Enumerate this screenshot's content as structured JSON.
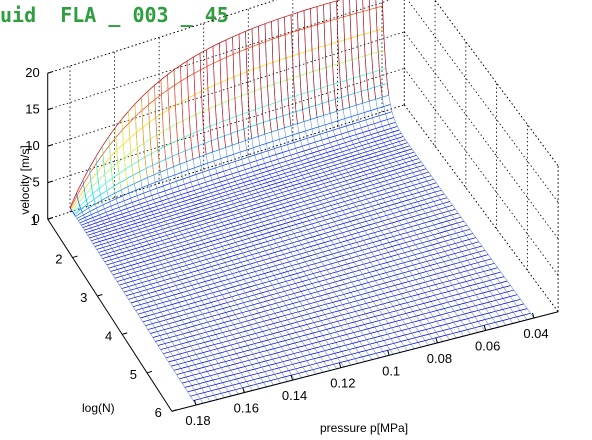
{
  "title": "uid  FLA _ 003 _ 45",
  "chart_data": {
    "type": "surface",
    "grid": true,
    "colormap": "jet",
    "xlabel": "pressure p[MPa]",
    "ylabel": "log(N)",
    "zlabel": "velocity [m/s]",
    "x_ticks": [
      "0.04",
      "0.06",
      "0.08",
      "0.1",
      "0.12",
      "0.14",
      "0.16",
      "0.18"
    ],
    "y_ticks": [
      "1",
      "2",
      "3",
      "4",
      "5",
      "6"
    ],
    "z_ticks": [
      "0",
      "5",
      "10",
      "15",
      "20"
    ],
    "xlim": [
      0.03,
      0.19
    ],
    "ylim": [
      1,
      6
    ],
    "zlim": [
      0,
      20
    ],
    "surface_samples": {
      "x": [
        0.04,
        0.06,
        0.08,
        0.1,
        0.12,
        0.14,
        0.16,
        0.18
      ],
      "y_at_logN_1": [
        15.5,
        17.0,
        18.5,
        19.8,
        20.2,
        20.0,
        18.0,
        8.0
      ],
      "y_at_logN_2": [
        0.2,
        0.3,
        0.5,
        0.6,
        0.7,
        0.8,
        0.9,
        1.0
      ],
      "y_at_logN_6": [
        0.0,
        0.0,
        0.0,
        0.0,
        0.0,
        0.0,
        0.0,
        0.0
      ]
    }
  }
}
